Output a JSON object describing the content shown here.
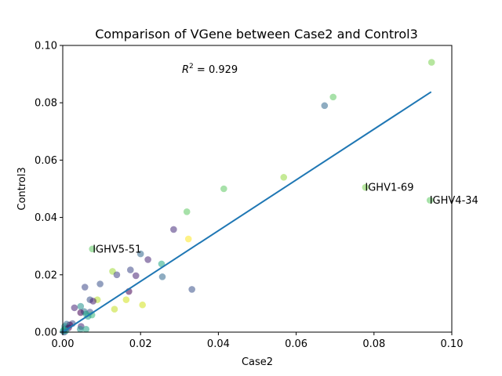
{
  "chart_data": {
    "type": "scatter",
    "title": "Comparison of VGene between Case2 and Control3",
    "xlabel": "Case2",
    "ylabel": "Control3",
    "xlim": [
      0.0,
      0.1
    ],
    "ylim": [
      0.0,
      0.1
    ],
    "xticks": [
      "0.00",
      "0.02",
      "0.04",
      "0.06",
      "0.08",
      "0.10"
    ],
    "yticks": [
      "0.00",
      "0.02",
      "0.04",
      "0.06",
      "0.08",
      "0.10"
    ],
    "grid": false,
    "r2_prefix": "R",
    "r2_exponent": "2",
    "r2_value": " = 0.929",
    "regression": {
      "x": [
        0.0,
        0.0947
      ],
      "y": [
        0.0,
        0.0838
      ],
      "color": "#1f77b4"
    },
    "annotations": [
      {
        "text": "IGHV5-51",
        "x": 0.0077,
        "y": 0.029
      },
      {
        "text": "IGHV1-69",
        "x": 0.0777,
        "y": 0.0505
      },
      {
        "text": "IGHV4-34",
        "x": 0.0943,
        "y": 0.046
      }
    ],
    "points": [
      {
        "x": 0.0948,
        "y": 0.0941,
        "color": "#7ad151"
      },
      {
        "x": 0.0695,
        "y": 0.082,
        "color": "#5ec962"
      },
      {
        "x": 0.0673,
        "y": 0.079,
        "color": "#31688e"
      },
      {
        "x": 0.0568,
        "y": 0.054,
        "color": "#95d840"
      },
      {
        "x": 0.0778,
        "y": 0.0505,
        "color": "#7ad151"
      },
      {
        "x": 0.0414,
        "y": 0.05,
        "color": "#5ec962"
      },
      {
        "x": 0.0944,
        "y": 0.046,
        "color": "#5ec962"
      },
      {
        "x": 0.0319,
        "y": 0.042,
        "color": "#5ec962"
      },
      {
        "x": 0.0285,
        "y": 0.0358,
        "color": "#472d7b"
      },
      {
        "x": 0.0323,
        "y": 0.0325,
        "color": "#fde725"
      },
      {
        "x": 0.0076,
        "y": 0.029,
        "color": "#5ec962"
      },
      {
        "x": 0.02,
        "y": 0.0273,
        "color": "#31688e"
      },
      {
        "x": 0.0219,
        "y": 0.0253,
        "color": "#482878"
      },
      {
        "x": 0.0254,
        "y": 0.0238,
        "color": "#22a884"
      },
      {
        "x": 0.0174,
        "y": 0.0217,
        "color": "#3e4989"
      },
      {
        "x": 0.0128,
        "y": 0.0212,
        "color": "#a0da39"
      },
      {
        "x": 0.0139,
        "y": 0.02,
        "color": "#414487"
      },
      {
        "x": 0.0188,
        "y": 0.0197,
        "color": "#482475"
      },
      {
        "x": 0.0256,
        "y": 0.0193,
        "color": "#31688e"
      },
      {
        "x": 0.0096,
        "y": 0.0168,
        "color": "#3b528b"
      },
      {
        "x": 0.0057,
        "y": 0.0157,
        "color": "#3e4989"
      },
      {
        "x": 0.0332,
        "y": 0.0149,
        "color": "#3b528b"
      },
      {
        "x": 0.017,
        "y": 0.0142,
        "color": "#440154"
      },
      {
        "x": 0.0163,
        "y": 0.0113,
        "color": "#d2e21b"
      },
      {
        "x": 0.0089,
        "y": 0.0113,
        "color": "#b5de2b"
      },
      {
        "x": 0.007,
        "y": 0.0113,
        "color": "#3b528b"
      },
      {
        "x": 0.0078,
        "y": 0.0108,
        "color": "#481f70"
      },
      {
        "x": 0.0205,
        "y": 0.0095,
        "color": "#d2e21b"
      },
      {
        "x": 0.0046,
        "y": 0.009,
        "color": "#21918c"
      },
      {
        "x": 0.003,
        "y": 0.0085,
        "color": "#482878"
      },
      {
        "x": 0.0133,
        "y": 0.008,
        "color": "#c2df23"
      },
      {
        "x": 0.0055,
        "y": 0.0072,
        "color": "#2c728e"
      },
      {
        "x": 0.007,
        "y": 0.007,
        "color": "#3b528b"
      },
      {
        "x": 0.0046,
        "y": 0.0068,
        "color": "#440154"
      },
      {
        "x": 0.006,
        "y": 0.0063,
        "color": "#1f9e89"
      },
      {
        "x": 0.0075,
        "y": 0.006,
        "color": "#35b779"
      },
      {
        "x": 0.0065,
        "y": 0.0055,
        "color": "#20a386"
      },
      {
        "x": 0.0047,
        "y": 0.002,
        "color": "#482878"
      },
      {
        "x": 0.0025,
        "y": 0.003,
        "color": "#3e4989"
      },
      {
        "x": 0.0018,
        "y": 0.0025,
        "color": "#440154"
      },
      {
        "x": 0.001,
        "y": 0.0028,
        "color": "#31688e"
      },
      {
        "x": 0.0005,
        "y": 0.002,
        "color": "#21918c"
      },
      {
        "x": 0.0006,
        "y": 0.0012,
        "color": "#2c728e"
      },
      {
        "x": 0.0015,
        "y": 0.0015,
        "color": "#440154"
      },
      {
        "x": 0.0003,
        "y": 0.0008,
        "color": "#22a884"
      },
      {
        "x": 0.0001,
        "y": 0.0003,
        "color": "#1f9e89"
      },
      {
        "x": 0.0004,
        "y": 0.0,
        "color": "#3b528b"
      },
      {
        "x": 0.0045,
        "y": 0.001,
        "color": "#21918c"
      },
      {
        "x": 0.006,
        "y": 0.001,
        "color": "#20a386"
      },
      {
        "x": 0.0008,
        "y": 0.0005,
        "color": "#1f9e89"
      }
    ]
  }
}
